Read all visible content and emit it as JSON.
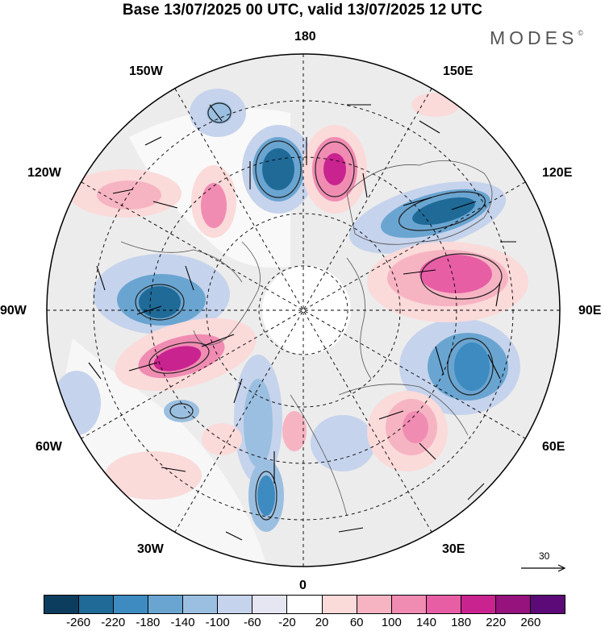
{
  "title": "Base 13/07/2025 00 UTC, valid 13/07/2025 12 UTC",
  "brand": "MODES",
  "brand_mark": "©",
  "longitude_labels": {
    "lon_180": "180",
    "lon_150e": "150E",
    "lon_120e": "120E",
    "lon_90e": "90E",
    "lon_60e": "60E",
    "lon_30e": "30E",
    "lon_0": "0",
    "lon_30w": "30W",
    "lon_60w": "60W",
    "lon_90w": "90W",
    "lon_120w": "120W",
    "lon_150w": "150W"
  },
  "reference_vector": "30",
  "colorbar": {
    "colors": [
      "#0d3d5e",
      "#1f6a97",
      "#3d8bc0",
      "#6aa5d1",
      "#9bbfe0",
      "#c6d3ec",
      "#e6e6f3",
      "#ffffff",
      "#fbdada",
      "#f6b4c3",
      "#f08cb2",
      "#e75ea5",
      "#c9238f",
      "#96127d",
      "#5c0a78"
    ],
    "tick_labels": [
      "-260",
      "-220",
      "-180",
      "-140",
      "-100",
      "-60",
      "-20",
      "20",
      "60",
      "100",
      "140",
      "180",
      "220",
      "260"
    ]
  }
}
